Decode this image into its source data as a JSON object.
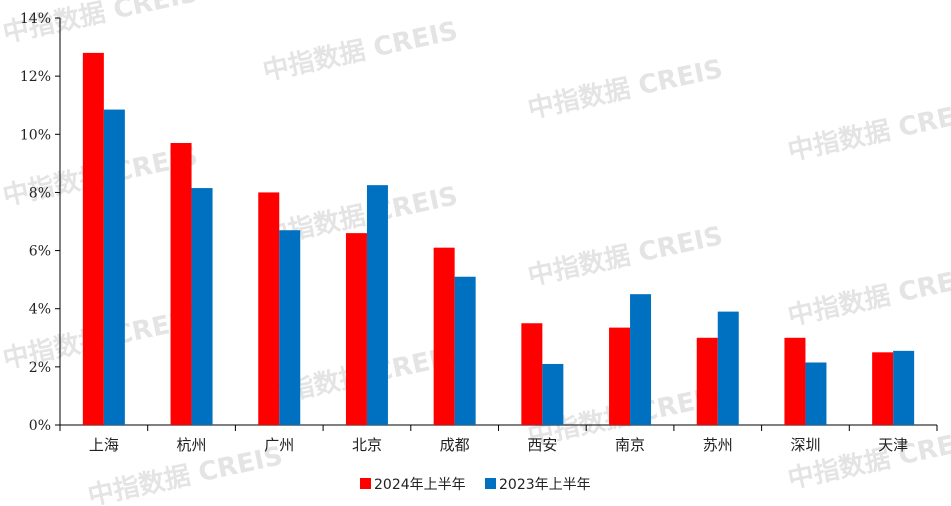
{
  "chart_data": {
    "type": "bar",
    "categories": [
      "上海",
      "杭州",
      "广州",
      "北京",
      "成都",
      "西安",
      "南京",
      "苏州",
      "深圳",
      "天津"
    ],
    "series": [
      {
        "name": "2024年上半年",
        "color": "#ff0000",
        "values": [
          12.8,
          9.7,
          8.0,
          6.6,
          6.1,
          3.5,
          3.35,
          3.0,
          3.0,
          2.5
        ]
      },
      {
        "name": "2023年上半年",
        "color": "#0070c0",
        "values": [
          10.85,
          8.15,
          6.7,
          8.25,
          5.1,
          2.1,
          4.5,
          3.9,
          2.15,
          2.55
        ]
      }
    ],
    "y_ticks": [
      "0%",
      "2%",
      "4%",
      "6%",
      "8%",
      "10%",
      "12%",
      "14%"
    ],
    "ylim": [
      0,
      14
    ],
    "grid": false,
    "legend_position": "bottom-center",
    "watermark": "中指数据 CREIS"
  }
}
